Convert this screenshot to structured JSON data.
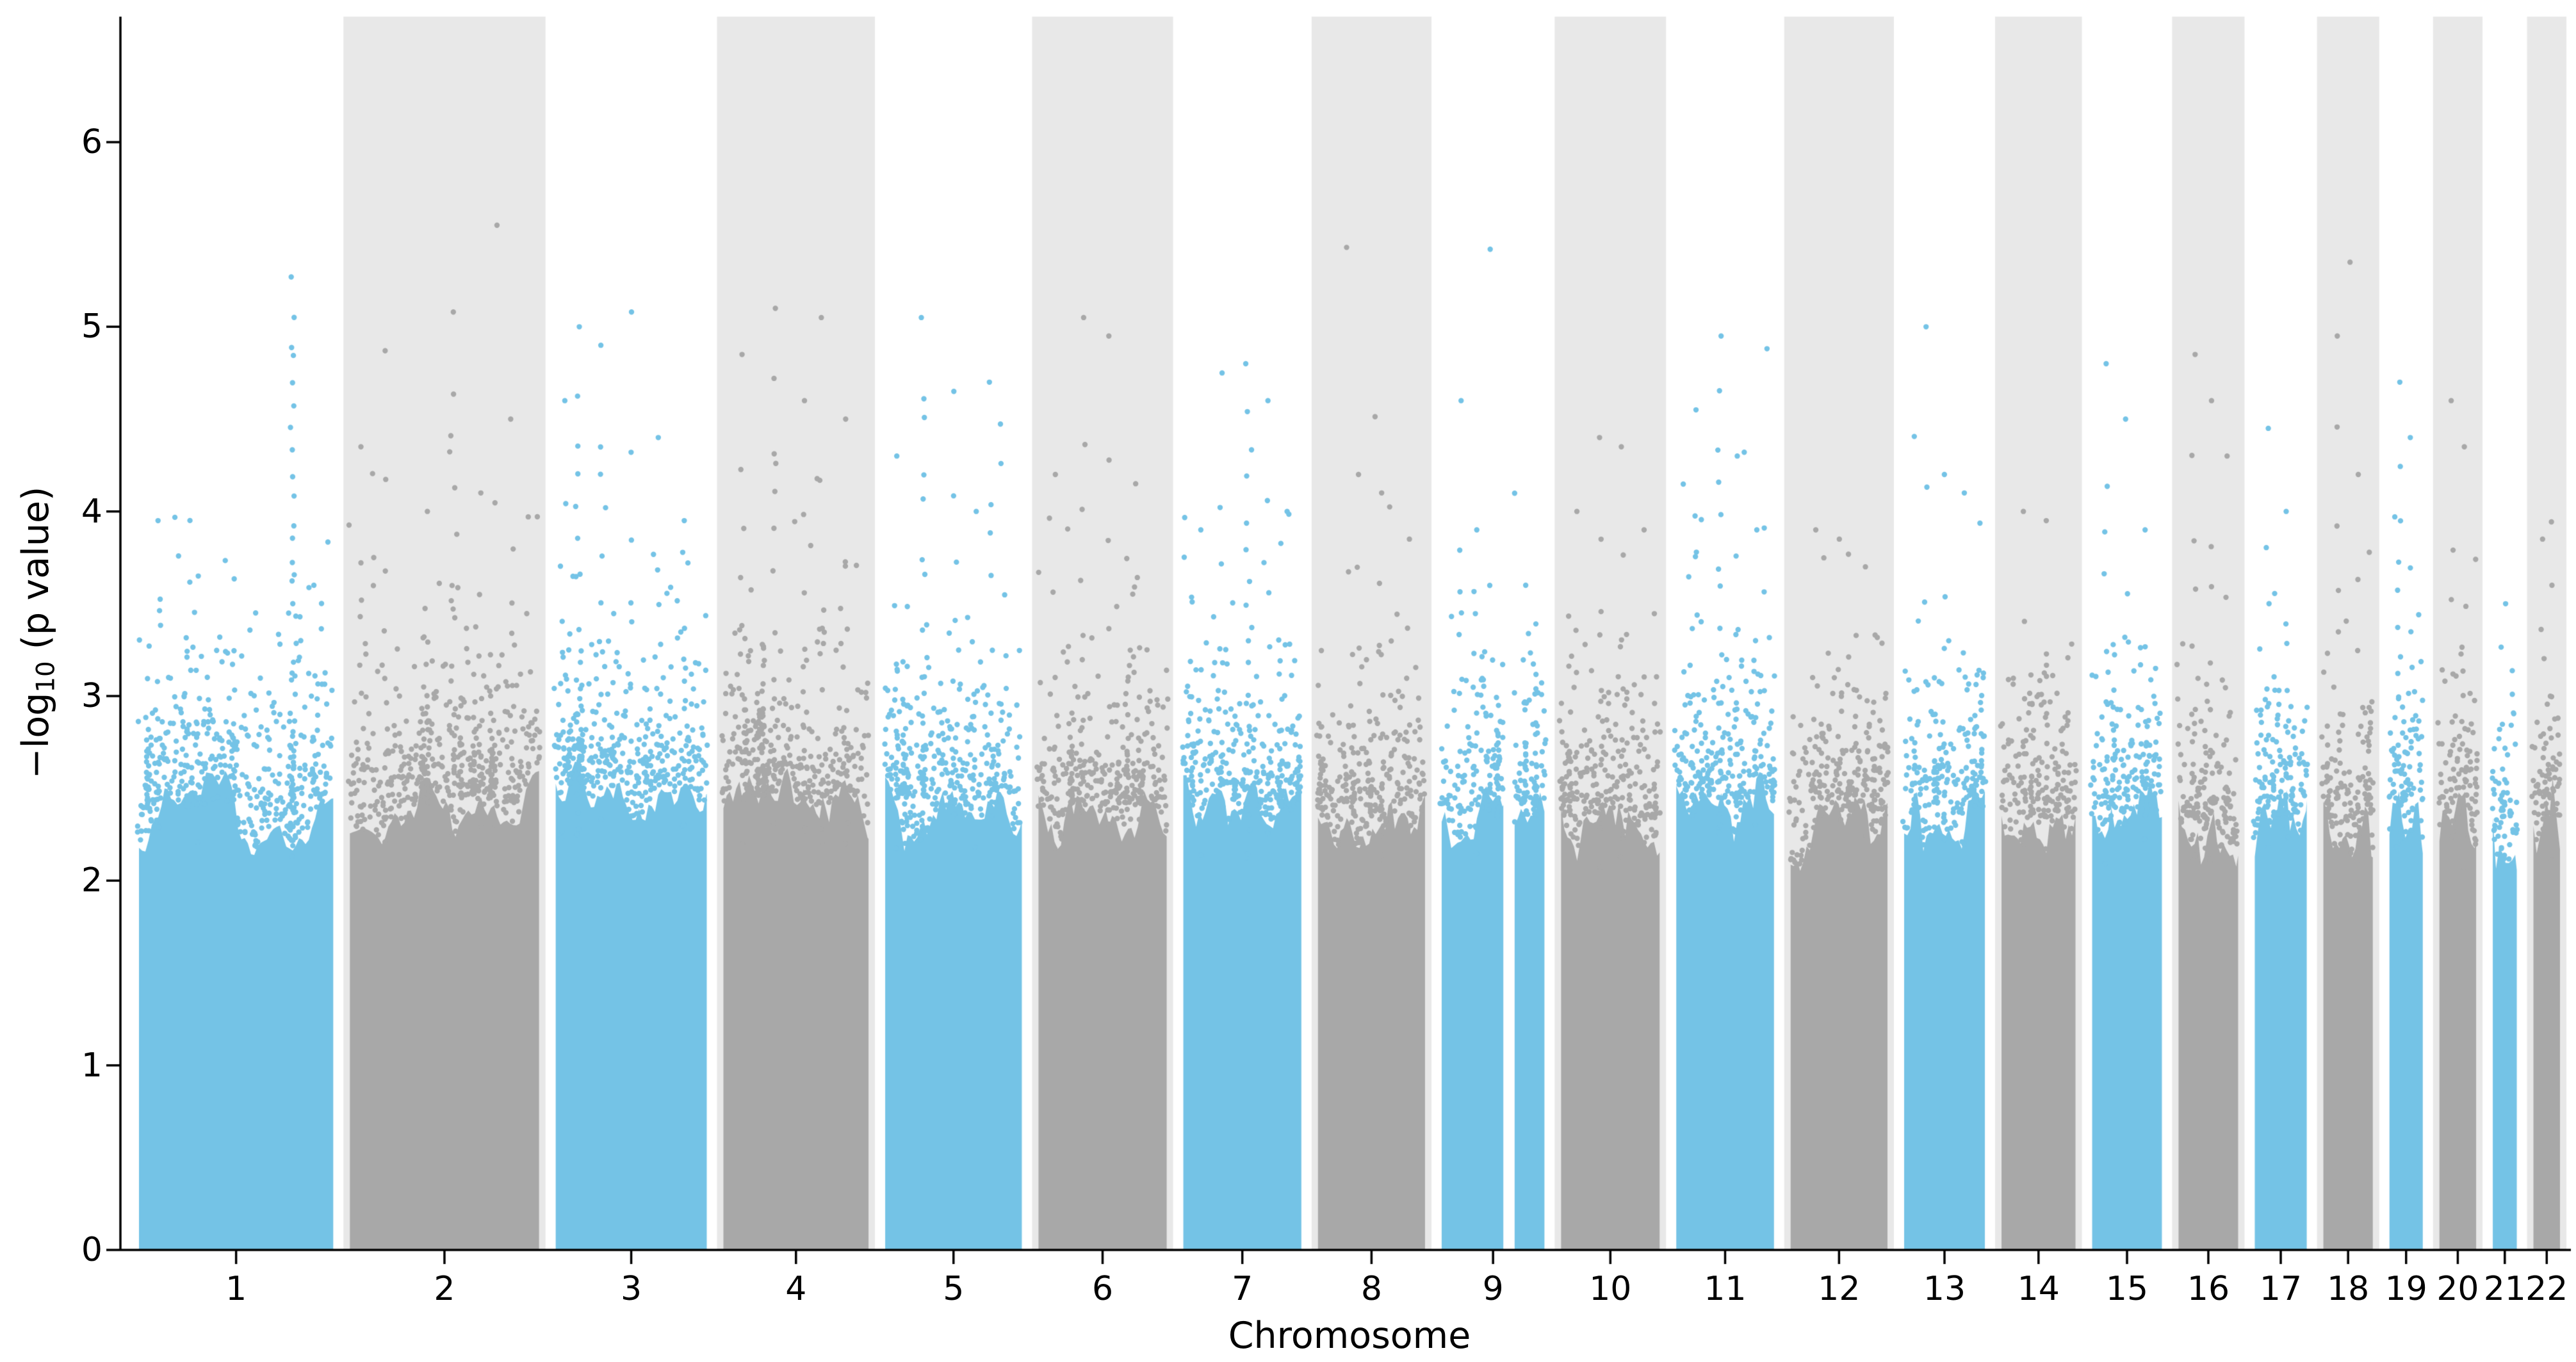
{
  "figure": {
    "xlabel": "Chromosome",
    "ylabel": {
      "pre": "−log",
      "sub": "10",
      "post": " (p value)"
    }
  },
  "chart_data": {
    "type": "scatter",
    "subtype": "manhattan-plot",
    "title": "",
    "xlabel": "Chromosome",
    "ylabel": "−log10 (p value)",
    "ylim": [
      0,
      6.68
    ],
    "yticks": [
      0,
      1,
      2,
      3,
      4,
      5,
      6
    ],
    "grid": false,
    "legend": null,
    "colors": {
      "blue": "#74c3e6",
      "gray": "#a8a8a8",
      "band_fill": "#e8e8e8",
      "axis": "#000000",
      "text": "#000000",
      "background": "#ffffff"
    },
    "background_bands": {
      "on": "even-numbered chromosomes",
      "fill": "#e8e8e8"
    },
    "chromosomes": [
      {
        "label": "1",
        "length_mb": 249,
        "point_color": "blue",
        "shaded_band": false,
        "dense_top": 2.35,
        "max": 5.27,
        "peaks": [
          [
            0.1,
            3.95,
            7
          ],
          [
            0.3,
            3.65,
            5
          ],
          [
            0.6,
            3.45,
            4
          ],
          [
            0.79,
            5.27,
            26
          ],
          [
            0.9,
            3.6,
            4
          ]
        ],
        "gaps": []
      },
      {
        "label": "2",
        "length_mb": 243,
        "point_color": "gray",
        "shaded_band": true,
        "dense_top": 2.4,
        "max": 5.55,
        "peaks": [
          [
            0.06,
            4.35,
            6
          ],
          [
            0.19,
            4.87,
            6
          ],
          [
            0.4,
            4.0,
            5
          ],
          [
            0.55,
            5.08,
            11
          ],
          [
            0.69,
            4.1,
            5
          ],
          [
            0.77,
            5.55,
            3
          ],
          [
            0.86,
            4.5,
            6
          ]
        ],
        "gaps": []
      },
      {
        "label": "3",
        "length_mb": 198,
        "point_color": "blue",
        "shaded_band": false,
        "dense_top": 2.45,
        "max": 5.08,
        "peaks": [
          [
            0.05,
            4.6,
            7
          ],
          [
            0.15,
            5.0,
            13
          ],
          [
            0.3,
            4.9,
            9
          ],
          [
            0.5,
            5.08,
            6
          ],
          [
            0.68,
            4.4,
            5
          ],
          [
            0.85,
            3.95,
            5
          ]
        ],
        "gaps": []
      },
      {
        "label": "4",
        "length_mb": 191,
        "point_color": "gray",
        "shaded_band": true,
        "dense_top": 2.4,
        "max": 5.1,
        "peaks": [
          [
            0.12,
            4.85,
            6
          ],
          [
            0.35,
            5.1,
            11
          ],
          [
            0.55,
            4.6,
            6
          ],
          [
            0.68,
            5.05,
            5
          ],
          [
            0.85,
            4.5,
            5
          ]
        ],
        "gaps": []
      },
      {
        "label": "5",
        "length_mb": 181,
        "point_color": "blue",
        "shaded_band": false,
        "dense_top": 2.4,
        "max": 5.05,
        "peaks": [
          [
            0.08,
            4.3,
            5
          ],
          [
            0.28,
            5.05,
            13
          ],
          [
            0.5,
            4.65,
            7
          ],
          [
            0.65,
            4.0,
            4
          ],
          [
            0.78,
            4.7,
            6
          ]
        ],
        "gaps": []
      },
      {
        "label": "6",
        "length_mb": 171,
        "point_color": "gray",
        "shaded_band": true,
        "dense_top": 2.35,
        "max": 5.05,
        "peaks": [
          [
            0.12,
            4.2,
            5
          ],
          [
            0.35,
            5.05,
            8
          ],
          [
            0.55,
            4.95,
            6
          ],
          [
            0.75,
            4.15,
            5
          ]
        ],
        "gaps": []
      },
      {
        "label": "7",
        "length_mb": 159,
        "point_color": "blue",
        "shaded_band": false,
        "dense_top": 2.35,
        "max": 4.8,
        "peaks": [
          [
            0.15,
            3.9,
            4
          ],
          [
            0.32,
            4.75,
            6
          ],
          [
            0.55,
            4.8,
            15
          ],
          [
            0.72,
            4.6,
            6
          ],
          [
            0.9,
            4.0,
            4
          ]
        ],
        "gaps": []
      },
      {
        "label": "8",
        "length_mb": 146,
        "point_color": "gray",
        "shaded_band": true,
        "dense_top": 2.3,
        "max": 5.43,
        "peaks": [
          [
            0.28,
            5.43,
            3
          ],
          [
            0.38,
            4.2,
            6
          ],
          [
            0.6,
            4.1,
            6
          ],
          [
            0.85,
            3.85,
            5
          ]
        ],
        "gaps": []
      },
      {
        "label": "9",
        "length_mb": 141,
        "point_color": "blue",
        "shaded_band": false,
        "dense_top": 2.3,
        "max": 5.42,
        "peaks": [
          [
            0.18,
            4.6,
            6
          ],
          [
            0.32,
            3.9,
            5
          ],
          [
            0.45,
            5.42,
            3
          ],
          [
            0.82,
            3.6,
            4
          ]
        ],
        "gaps": [
          [
            0.6,
            0.71
          ]
        ]
      },
      {
        "label": "10",
        "length_mb": 136,
        "point_color": "gray",
        "shaded_band": true,
        "dense_top": 2.3,
        "max": 4.4,
        "peaks": [
          [
            0.15,
            4.0,
            5
          ],
          [
            0.4,
            4.4,
            6
          ],
          [
            0.62,
            4.35,
            5
          ],
          [
            0.85,
            3.9,
            4
          ]
        ],
        "gaps": []
      },
      {
        "label": "11",
        "length_mb": 135,
        "point_color": "blue",
        "shaded_band": false,
        "dense_top": 2.4,
        "max": 4.95,
        "peaks": [
          [
            0.18,
            4.55,
            7
          ],
          [
            0.45,
            4.95,
            13
          ],
          [
            0.62,
            4.3,
            5
          ],
          [
            0.82,
            3.9,
            4
          ]
        ],
        "gaps": []
      },
      {
        "label": "12",
        "length_mb": 134,
        "point_color": "gray",
        "shaded_band": true,
        "dense_top": 2.3,
        "max": 3.9,
        "peaks": [
          [
            0.25,
            3.9,
            4
          ],
          [
            0.5,
            3.85,
            4
          ],
          [
            0.78,
            3.7,
            3
          ]
        ],
        "gaps": []
      },
      {
        "label": "13",
        "length_mb": 115,
        "point_color": "blue",
        "shaded_band": false,
        "dense_top": 2.35,
        "max": 5.0,
        "peaks": [
          [
            0.25,
            5.0,
            5
          ],
          [
            0.5,
            4.2,
            5
          ],
          [
            0.75,
            4.1,
            4
          ]
        ],
        "gaps": []
      },
      {
        "label": "14",
        "length_mb": 107,
        "point_color": "gray",
        "shaded_band": true,
        "dense_top": 2.3,
        "max": 4.0,
        "peaks": [
          [
            0.3,
            4.0,
            5
          ],
          [
            0.6,
            3.95,
            4
          ]
        ],
        "gaps": []
      },
      {
        "label": "15",
        "length_mb": 102,
        "point_color": "blue",
        "shaded_band": false,
        "dense_top": 2.3,
        "max": 4.8,
        "peaks": [
          [
            0.2,
            4.8,
            8
          ],
          [
            0.5,
            4.5,
            5
          ],
          [
            0.75,
            3.9,
            4
          ]
        ],
        "gaps": []
      },
      {
        "label": "16",
        "length_mb": 90,
        "point_color": "gray",
        "shaded_band": true,
        "dense_top": 2.25,
        "max": 4.85,
        "peaks": [
          [
            0.25,
            4.85,
            8
          ],
          [
            0.55,
            4.6,
            6
          ],
          [
            0.8,
            4.3,
            5
          ]
        ],
        "gaps": []
      },
      {
        "label": "17",
        "length_mb": 81,
        "point_color": "blue",
        "shaded_band": false,
        "dense_top": 2.3,
        "max": 4.45,
        "peaks": [
          [
            0.25,
            4.45,
            6
          ],
          [
            0.6,
            4.0,
            5
          ]
        ],
        "gaps": []
      },
      {
        "label": "18",
        "length_mb": 78,
        "point_color": "gray",
        "shaded_band": true,
        "dense_top": 2.3,
        "max": 5.35,
        "peaks": [
          [
            0.3,
            4.95,
            8
          ],
          [
            0.5,
            5.35,
            3
          ],
          [
            0.7,
            4.2,
            5
          ]
        ],
        "gaps": []
      },
      {
        "label": "19",
        "length_mb": 59,
        "point_color": "blue",
        "shaded_band": false,
        "dense_top": 2.35,
        "max": 4.7,
        "peaks": [
          [
            0.3,
            4.7,
            9
          ],
          [
            0.65,
            4.4,
            5
          ]
        ],
        "gaps": []
      },
      {
        "label": "20",
        "length_mb": 63,
        "point_color": "gray",
        "shaded_band": true,
        "dense_top": 2.3,
        "max": 4.6,
        "peaks": [
          [
            0.35,
            4.6,
            6
          ],
          [
            0.7,
            4.35,
            5
          ]
        ],
        "gaps": []
      },
      {
        "label": "21",
        "length_mb": 48,
        "point_color": "blue",
        "shaded_band": false,
        "dense_top": 2.2,
        "max": 3.5,
        "peaks": [
          [
            0.45,
            3.5,
            4
          ]
        ],
        "gaps": []
      },
      {
        "label": "22",
        "length_mb": 51,
        "point_color": "gray",
        "shaded_band": true,
        "dense_top": 2.3,
        "max": 3.85,
        "peaks": [
          [
            0.35,
            3.85,
            4
          ],
          [
            0.7,
            3.6,
            3
          ]
        ],
        "gaps": []
      }
    ]
  }
}
